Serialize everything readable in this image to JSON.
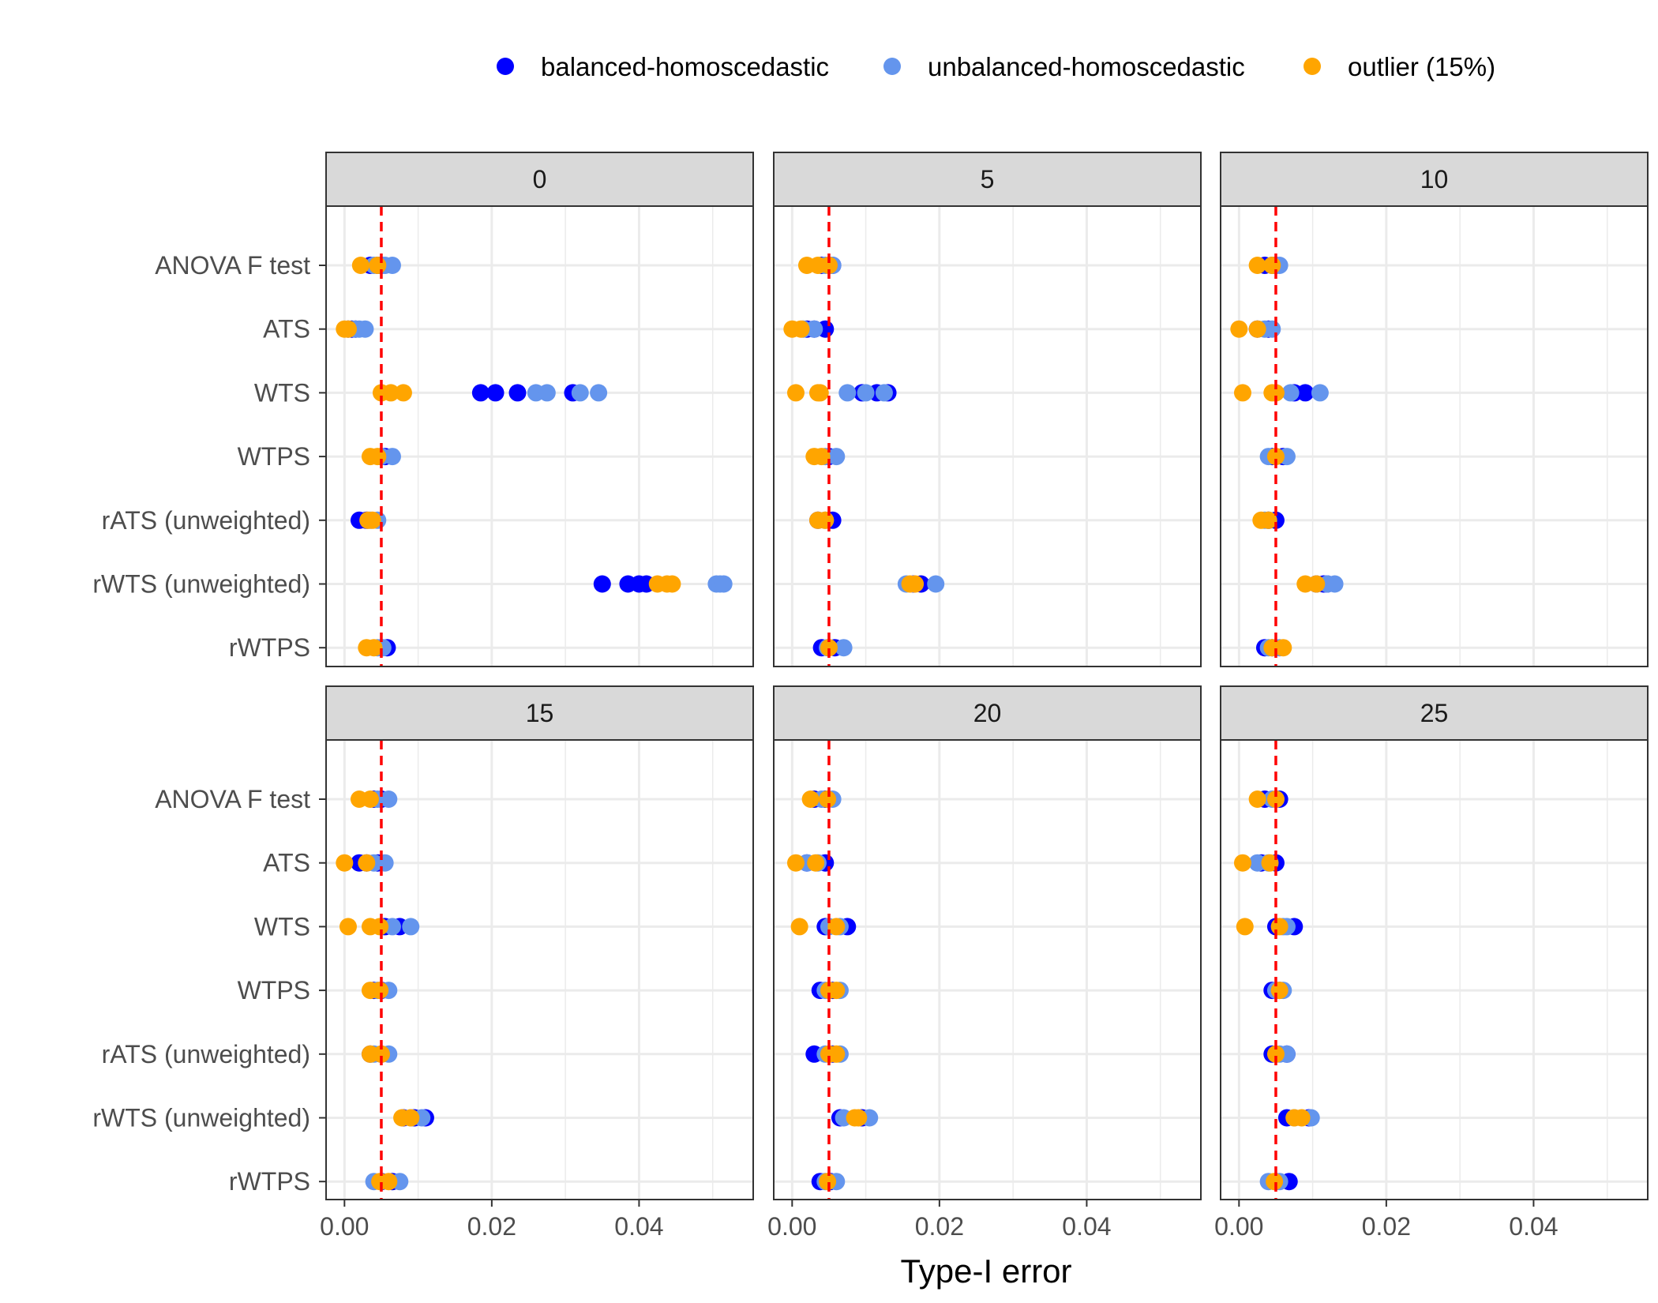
{
  "chart_data": {
    "type": "scatter",
    "xlabel": "Type-I error",
    "ylabel": "",
    "xlim": [
      -0.0025,
      0.0555
    ],
    "x_ticks": [
      0.0,
      0.02,
      0.04
    ],
    "x_tick_labels": [
      "0.00",
      "0.02",
      "0.04"
    ],
    "x_minor_gridlines": [
      0.01,
      0.03,
      0.05
    ],
    "grid": true,
    "legend_position": "top",
    "reference_line": {
      "x": 0.005,
      "color": "#ff0000",
      "style": "dashed"
    },
    "categories": [
      "ANOVA F test",
      "ATS",
      "WTS",
      "WTPS",
      "rATS (unweighted)",
      "rWTS (unweighted)",
      "rWTPS"
    ],
    "series": [
      {
        "name": "balanced-homoscedastic",
        "color": "#0000ff"
      },
      {
        "name": "unbalanced-homoscedastic",
        "color": "#6495ed"
      },
      {
        "name": "outlier (15%)",
        "color": "#ffa500"
      }
    ],
    "panels": [
      {
        "label": "0",
        "points": {
          "ANOVA F test": [
            [
              0.0035,
              0.0045,
              0.005
            ],
            [
              0.004,
              0.0055,
              0.0065
            ],
            [
              0.0022,
              0.0045
            ]
          ],
          "ATS": [
            [
              0.0005,
              0.001,
              0.0015
            ],
            [
              0.0015,
              0.002,
              0.0028
            ],
            [
              0.0,
              0.0005
            ]
          ],
          "WTS": [
            [
              0.0185,
              0.0205,
              0.0235,
              0.031
            ],
            [
              0.026,
              0.0275,
              0.032,
              0.0345
            ],
            [
              0.005,
              0.0063,
              0.008
            ]
          ],
          "WTPS": [
            [
              0.005,
              0.0055
            ],
            [
              0.005,
              0.0065
            ],
            [
              0.0035,
              0.0045
            ]
          ],
          "rATS (unweighted)": [
            [
              0.002,
              0.003
            ],
            [
              0.0035,
              0.0045
            ],
            [
              0.0032,
              0.0038
            ]
          ],
          "rWTS (unweighted)": [
            [
              0.035,
              0.0385,
              0.04,
              0.041
            ],
            [
              0.0505,
              0.051,
              0.0515
            ],
            [
              0.0425,
              0.0438,
              0.0445
            ]
          ],
          "rWTPS": [
            [
              0.005,
              0.0058
            ],
            [
              0.0045,
              0.0052
            ],
            [
              0.003,
              0.004
            ]
          ]
        }
      },
      {
        "label": "5",
        "points": {
          "ANOVA F test": [
            [
              0.004,
              0.0055
            ],
            [
              0.0045,
              0.0055
            ],
            [
              0.002,
              0.0035,
              0.005
            ]
          ],
          "ATS": [
            [
              0.002,
              0.003,
              0.0045
            ],
            [
              0.0015,
              0.003
            ],
            [
              0.0,
              0.0012
            ]
          ],
          "WTS": [
            [
              0.0095,
              0.0115,
              0.013
            ],
            [
              0.0075,
              0.01,
              0.0125
            ],
            [
              0.0005,
              0.0035,
              0.0038
            ]
          ],
          "WTPS": [
            [
              0.005
            ],
            [
              0.0045,
              0.006
            ],
            [
              0.003,
              0.004
            ]
          ],
          "rATS (unweighted)": [
            [
              0.0035,
              0.0055
            ],
            [
              0.0045
            ],
            [
              0.0035,
              0.0045
            ]
          ],
          "rWTS (unweighted)": [
            [
              0.0165,
              0.0175
            ],
            [
              0.0155,
              0.0195
            ],
            [
              0.016,
              0.0167
            ]
          ],
          "rWTPS": [
            [
              0.004,
              0.0058
            ],
            [
              0.0048,
              0.007
            ],
            [
              0.005
            ]
          ]
        }
      },
      {
        "label": "10",
        "points": {
          "ANOVA F test": [
            [
              0.0035,
              0.0045,
              0.005
            ],
            [
              0.0045,
              0.0055
            ],
            [
              0.0025,
              0.0045
            ]
          ],
          "ATS": [
            [
              0.0025,
              0.004
            ],
            [
              0.0035,
              0.0045
            ],
            [
              0.0,
              0.0025
            ]
          ],
          "WTS": [
            [
              0.0075,
              0.009
            ],
            [
              0.007,
              0.011
            ],
            [
              0.0005,
              0.0045,
              0.005
            ]
          ],
          "WTPS": [
            [
              0.0045,
              0.006
            ],
            [
              0.004,
              0.0065
            ],
            [
              0.005
            ]
          ],
          "rATS (unweighted)": [
            [
              0.004,
              0.005
            ],
            [
              0.0035,
              0.004
            ],
            [
              0.003,
              0.004
            ]
          ],
          "rWTS (unweighted)": [
            [
              0.0105,
              0.0115,
              0.012
            ],
            [
              0.012,
              0.013
            ],
            [
              0.009,
              0.0105
            ]
          ],
          "rWTPS": [
            [
              0.0035,
              0.0045
            ],
            [
              0.004,
              0.0055
            ],
            [
              0.0045,
              0.006
            ]
          ]
        }
      },
      {
        "label": "15",
        "points": {
          "ANOVA F test": [
            [
              0.004,
              0.005
            ],
            [
              0.0045,
              0.006
            ],
            [
              0.002,
              0.0035
            ]
          ],
          "ATS": [
            [
              0.002,
              0.003,
              0.0045
            ],
            [
              0.004,
              0.0055
            ],
            [
              0.0,
              0.003
            ]
          ],
          "WTS": [
            [
              0.0055,
              0.0075
            ],
            [
              0.0065,
              0.009
            ],
            [
              0.0005,
              0.0035,
              0.0048
            ]
          ],
          "WTPS": [
            [
              0.004,
              0.005
            ],
            [
              0.0045,
              0.006
            ],
            [
              0.0035,
              0.0048
            ]
          ],
          "rATS (unweighted)": [
            [
              0.0035,
              0.005
            ],
            [
              0.004,
              0.006
            ],
            [
              0.0035,
              0.005
            ]
          ],
          "rWTS (unweighted)": [
            [
              0.008,
              0.0095,
              0.011
            ],
            [
              0.009,
              0.0105
            ],
            [
              0.0078,
              0.009
            ]
          ],
          "rWTPS": [
            [
              0.005,
              0.0065
            ],
            [
              0.004,
              0.0075
            ],
            [
              0.0048,
              0.006
            ]
          ]
        }
      },
      {
        "label": "20",
        "points": {
          "ANOVA F test": [
            [
              0.003,
              0.0045
            ],
            [
              0.004,
              0.0055
            ],
            [
              0.0025,
              0.0048
            ]
          ],
          "ATS": [
            [
              0.002,
              0.0045
            ],
            [
              0.002,
              0.0035
            ],
            [
              0.0005,
              0.0032
            ]
          ],
          "WTS": [
            [
              0.0045,
              0.0075
            ],
            [
              0.005,
              0.0065
            ],
            [
              0.001,
              0.006
            ]
          ],
          "WTPS": [
            [
              0.0038,
              0.0055
            ],
            [
              0.0045,
              0.0065
            ],
            [
              0.005,
              0.006
            ]
          ],
          "rATS (unweighted)": [
            [
              0.003,
              0.0055
            ],
            [
              0.0045,
              0.0065
            ],
            [
              0.005,
              0.006
            ]
          ],
          "rWTS (unweighted)": [
            [
              0.0065,
              0.0095
            ],
            [
              0.007,
              0.0105
            ],
            [
              0.0085,
              0.009
            ]
          ],
          "rWTPS": [
            [
              0.0038,
              0.0052
            ],
            [
              0.0045,
              0.006
            ],
            [
              0.0048
            ]
          ]
        }
      },
      {
        "label": "25",
        "points": {
          "ANOVA F test": [
            [
              0.0035,
              0.0055
            ],
            [
              0.0045,
              0.005
            ],
            [
              0.0025,
              0.005
            ]
          ],
          "ATS": [
            [
              0.003,
              0.005
            ],
            [
              0.0025,
              0.004
            ],
            [
              0.0005,
              0.0042
            ]
          ],
          "WTS": [
            [
              0.005,
              0.0075
            ],
            [
              0.006,
              0.0065
            ],
            [
              0.0008,
              0.0055
            ]
          ],
          "WTPS": [
            [
              0.0045,
              0.0055
            ],
            [
              0.005,
              0.006
            ],
            [
              0.0055
            ]
          ],
          "rATS (unweighted)": [
            [
              0.0045,
              0.0065
            ],
            [
              0.0055,
              0.0065
            ],
            [
              0.005
            ]
          ],
          "rWTS (unweighted)": [
            [
              0.0065,
              0.0095
            ],
            [
              0.0075,
              0.0098
            ],
            [
              0.0075,
              0.0085
            ]
          ],
          "rWTPS": [
            [
              0.005,
              0.0068
            ],
            [
              0.004,
              0.0055
            ],
            [
              0.0048
            ]
          ]
        }
      }
    ]
  }
}
